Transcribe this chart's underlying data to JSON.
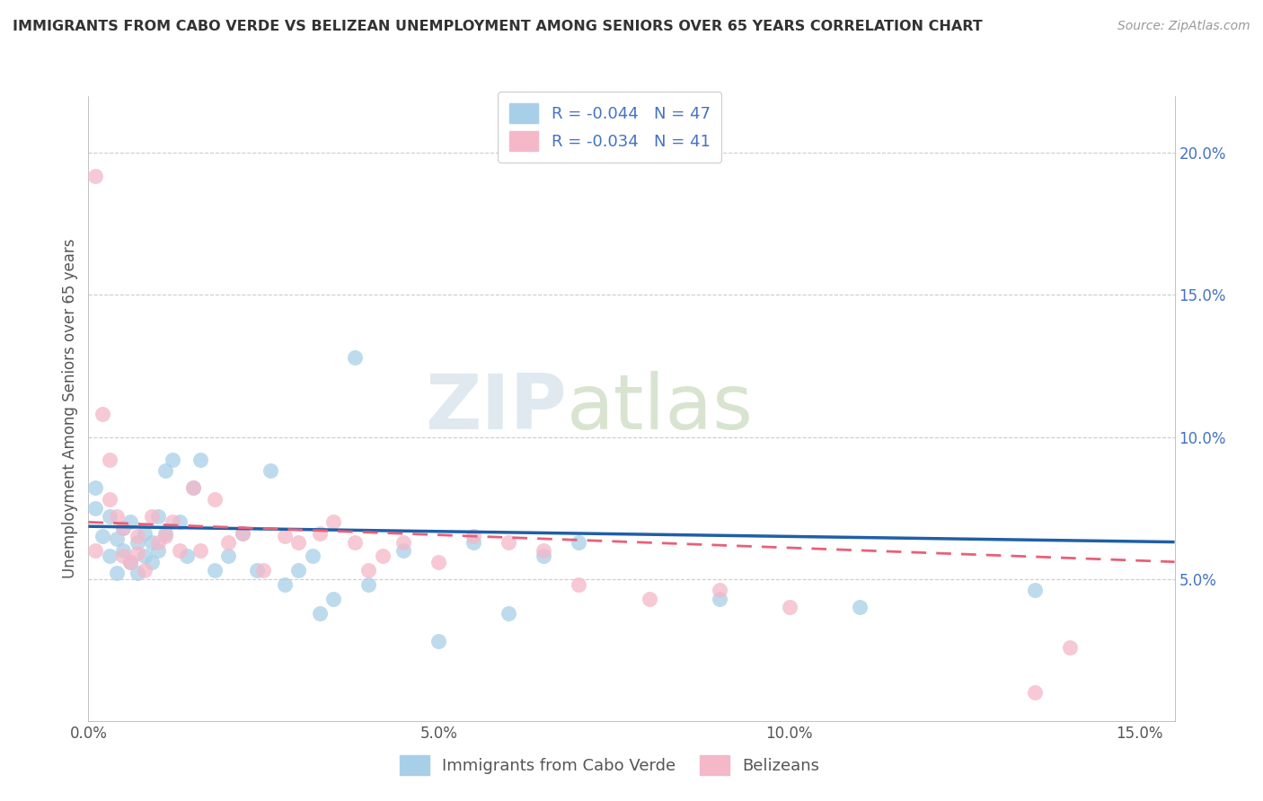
{
  "title": "IMMIGRANTS FROM CABO VERDE VS BELIZEAN UNEMPLOYMENT AMONG SENIORS OVER 65 YEARS CORRELATION CHART",
  "source": "Source: ZipAtlas.com",
  "ylabel": "Unemployment Among Seniors over 65 years",
  "xlim": [
    0.0,
    0.155
  ],
  "ylim": [
    0.0,
    0.22
  ],
  "xticks": [
    0.0,
    0.025,
    0.05,
    0.075,
    0.1,
    0.125,
    0.15
  ],
  "xticklabels": [
    "0.0%",
    "",
    "5.0%",
    "",
    "10.0%",
    "",
    "15.0%"
  ],
  "yticks": [
    0.05,
    0.1,
    0.15,
    0.2
  ],
  "yticklabels": [
    "5.0%",
    "10.0%",
    "15.0%",
    "20.0%"
  ],
  "legend1_label": "Immigrants from Cabo Verde",
  "legend2_label": "Belizeans",
  "R1": -0.044,
  "N1": 47,
  "R2": -0.034,
  "N2": 41,
  "color1": "#a8cfe8",
  "color2": "#f4b8c8",
  "line1_color": "#1f5fa6",
  "line2_color": "#e8607a",
  "watermark_zip": "ZIP",
  "watermark_atlas": "atlas",
  "blue_scatter_x": [
    0.001,
    0.001,
    0.002,
    0.003,
    0.003,
    0.004,
    0.004,
    0.005,
    0.005,
    0.006,
    0.006,
    0.007,
    0.007,
    0.008,
    0.008,
    0.009,
    0.009,
    0.01,
    0.01,
    0.011,
    0.011,
    0.012,
    0.013,
    0.014,
    0.015,
    0.016,
    0.018,
    0.02,
    0.022,
    0.024,
    0.026,
    0.028,
    0.03,
    0.032,
    0.033,
    0.035,
    0.038,
    0.04,
    0.045,
    0.05,
    0.055,
    0.06,
    0.065,
    0.07,
    0.09,
    0.11,
    0.135
  ],
  "blue_scatter_y": [
    0.075,
    0.082,
    0.065,
    0.058,
    0.072,
    0.064,
    0.052,
    0.06,
    0.068,
    0.056,
    0.07,
    0.063,
    0.052,
    0.058,
    0.066,
    0.056,
    0.063,
    0.06,
    0.072,
    0.066,
    0.088,
    0.092,
    0.07,
    0.058,
    0.082,
    0.092,
    0.053,
    0.058,
    0.066,
    0.053,
    0.088,
    0.048,
    0.053,
    0.058,
    0.038,
    0.043,
    0.128,
    0.048,
    0.06,
    0.028,
    0.063,
    0.038,
    0.058,
    0.063,
    0.043,
    0.04,
    0.046
  ],
  "pink_scatter_x": [
    0.001,
    0.001,
    0.002,
    0.003,
    0.003,
    0.004,
    0.005,
    0.005,
    0.006,
    0.007,
    0.007,
    0.008,
    0.009,
    0.01,
    0.011,
    0.012,
    0.013,
    0.015,
    0.016,
    0.018,
    0.02,
    0.022,
    0.025,
    0.028,
    0.03,
    0.033,
    0.035,
    0.038,
    0.04,
    0.042,
    0.045,
    0.05,
    0.055,
    0.06,
    0.065,
    0.07,
    0.08,
    0.09,
    0.1,
    0.135,
    0.14
  ],
  "pink_scatter_y": [
    0.192,
    0.06,
    0.108,
    0.092,
    0.078,
    0.072,
    0.058,
    0.068,
    0.056,
    0.065,
    0.059,
    0.053,
    0.072,
    0.063,
    0.065,
    0.07,
    0.06,
    0.082,
    0.06,
    0.078,
    0.063,
    0.066,
    0.053,
    0.065,
    0.063,
    0.066,
    0.07,
    0.063,
    0.053,
    0.058,
    0.063,
    0.056,
    0.065,
    0.063,
    0.06,
    0.048,
    0.043,
    0.046,
    0.04,
    0.01,
    0.026
  ]
}
